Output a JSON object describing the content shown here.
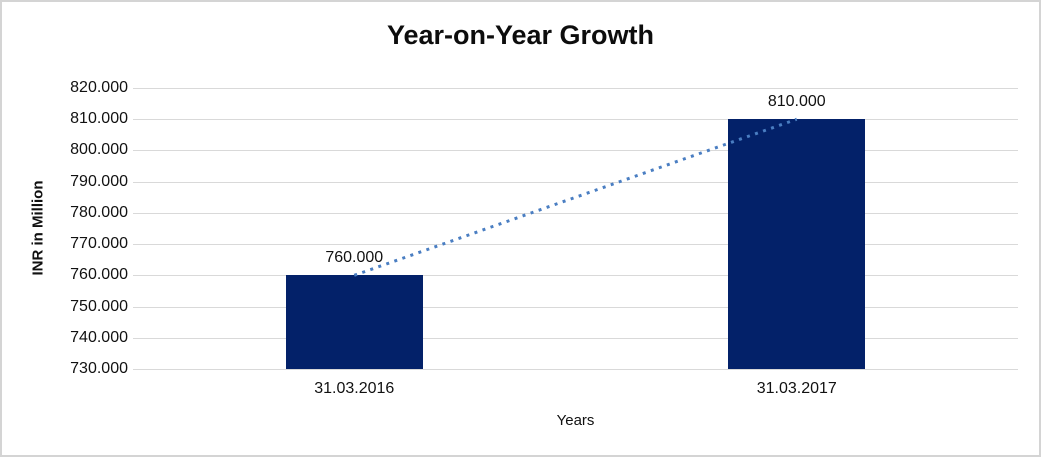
{
  "chart_data": {
    "type": "bar",
    "title": "Year-on-Year Growth",
    "xlabel": "Years",
    "ylabel": "INR in Million",
    "categories": [
      "31.03.2016",
      "31.03.2017"
    ],
    "values": [
      760000,
      810000
    ],
    "value_labels": [
      "760.000",
      "810.000"
    ],
    "ylim": [
      730000,
      820000
    ],
    "ytick_step": 10000,
    "ytick_labels": [
      "730.000",
      "740.000",
      "750.000",
      "760.000",
      "770.000",
      "780.000",
      "790.000",
      "800.000",
      "810.000",
      "820.000"
    ],
    "grid": true,
    "legend_position": "none",
    "bar_color": "#032169",
    "gridline_color": "#d9d9d9",
    "trendline": {
      "type": "linear",
      "style": "dotted",
      "color": "#4a7ec2"
    }
  }
}
